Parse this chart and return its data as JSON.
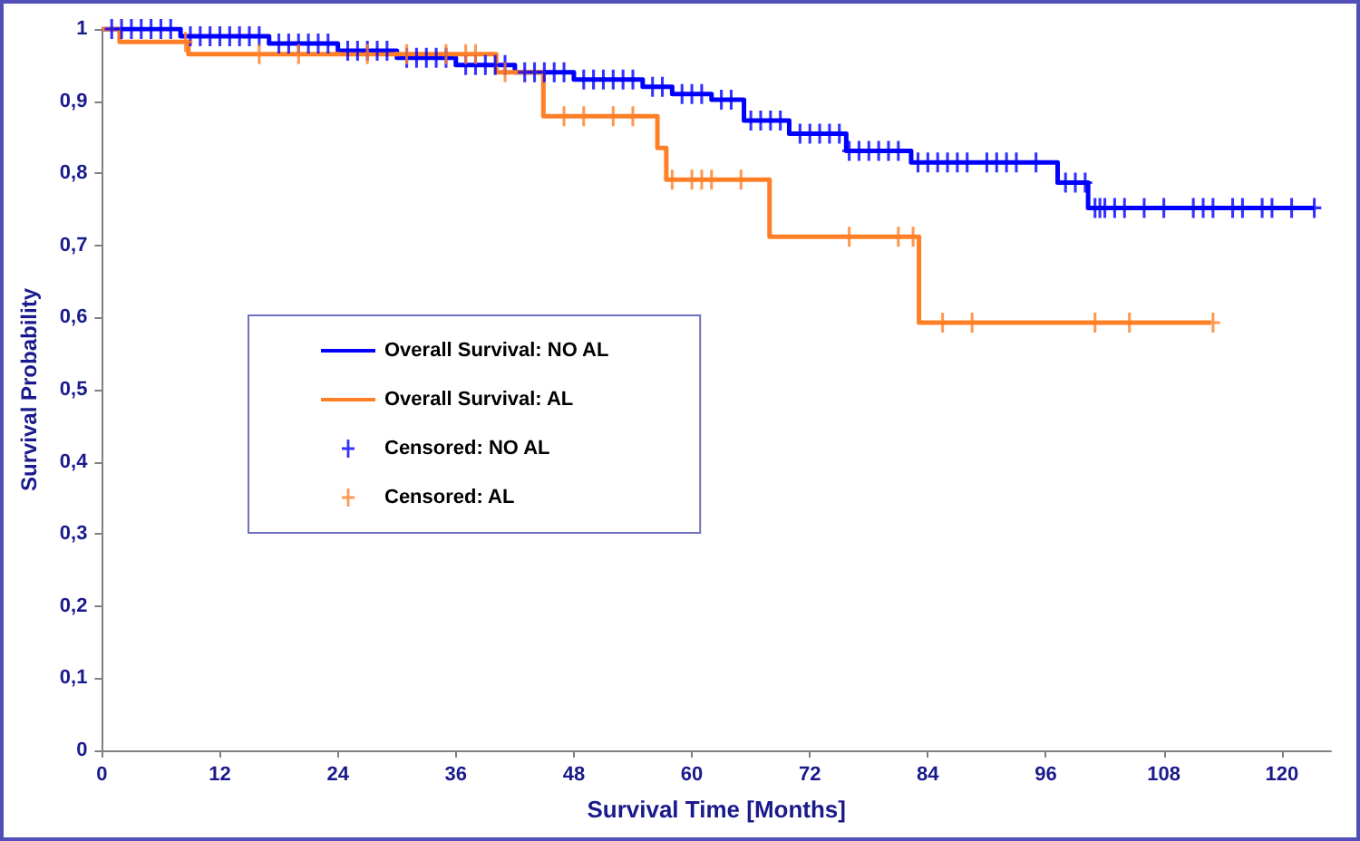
{
  "chart_data": {
    "type": "step",
    "xlabel": "Survival Time [Months]",
    "ylabel": "Survival Probability",
    "xlim": [
      0,
      125
    ],
    "xticks": [
      0,
      12,
      24,
      36,
      48,
      60,
      72,
      84,
      96,
      108,
      120
    ],
    "ylim": [
      0,
      1
    ],
    "yticks": [
      0,
      {
        "value": 0.1,
        "label": "0,1"
      },
      {
        "value": 0.2,
        "label": "0,2"
      },
      {
        "value": 0.3,
        "label": "0,3"
      },
      {
        "value": 0.4,
        "label": "0,4"
      },
      {
        "value": 0.5,
        "label": "0,5"
      },
      {
        "value": 0.6,
        "label": "0,6"
      },
      {
        "value": 0.7,
        "label": "0,7"
      },
      {
        "value": 0.8,
        "label": "0,8"
      },
      {
        "value": 0.9,
        "label": "0,9"
      },
      1
    ],
    "grid": false,
    "legend": "left",
    "series": [
      {
        "name": "Overall Survival: NO AL",
        "color": "#0000ff",
        "x": [
          0,
          8,
          17,
          24,
          30,
          36,
          42,
          48,
          55,
          58,
          62,
          65.3,
          69.9,
          75.7,
          82.3,
          97.2,
          100.3,
          123.3
        ],
        "values": [
          1,
          0.99,
          0.98,
          0.97,
          0.96,
          0.95,
          0.94,
          0.93,
          0.92,
          0.91,
          0.902,
          0.873,
          0.855,
          0.831,
          0.815,
          0.787,
          0.752,
          0.752
        ]
      },
      {
        "name": "Overall Survival: AL",
        "color": "#ff7f27",
        "x": [
          0,
          1.8,
          8.8,
          40.1,
          44.9,
          56.5,
          57.4,
          67.9,
          83.1,
          112.8
        ],
        "values": [
          1,
          0.982,
          0.965,
          0.94,
          0.879,
          0.835,
          0.791,
          0.712,
          0.593,
          0.593
        ]
      },
      {
        "name": "Censored: NO AL",
        "type": "scatter",
        "marker": "cross",
        "color": "#0000ff",
        "x": [
          1,
          2,
          3,
          4,
          5,
          6,
          7,
          9,
          10,
          11,
          12,
          13,
          14,
          15,
          16,
          18,
          19,
          20,
          21,
          22,
          23,
          25,
          26,
          27,
          28,
          29,
          31,
          32,
          33,
          34,
          35,
          37,
          38,
          39,
          40,
          41,
          43,
          44,
          45,
          46,
          47,
          49,
          50,
          51,
          52,
          53,
          54,
          56,
          57,
          59,
          60,
          61,
          63,
          64,
          66,
          67,
          68,
          69,
          71,
          72,
          73,
          74,
          75,
          76,
          77,
          78,
          79,
          80,
          81,
          83,
          84,
          85,
          86,
          87,
          88,
          90,
          91,
          92,
          93,
          95,
          98,
          99,
          100,
          101,
          101.5,
          102,
          103,
          104,
          106,
          108,
          111,
          112,
          113,
          115,
          116,
          118,
          119,
          121,
          123.3
        ],
        "values": [
          1,
          1,
          1,
          1,
          1,
          1,
          1,
          0.99,
          0.99,
          0.99,
          0.99,
          0.99,
          0.99,
          0.99,
          0.99,
          0.98,
          0.98,
          0.98,
          0.98,
          0.98,
          0.98,
          0.97,
          0.97,
          0.97,
          0.97,
          0.97,
          0.96,
          0.96,
          0.96,
          0.96,
          0.96,
          0.95,
          0.95,
          0.95,
          0.95,
          0.95,
          0.94,
          0.94,
          0.94,
          0.94,
          0.94,
          0.93,
          0.93,
          0.93,
          0.93,
          0.93,
          0.93,
          0.92,
          0.92,
          0.91,
          0.91,
          0.91,
          0.902,
          0.902,
          0.873,
          0.873,
          0.873,
          0.873,
          0.855,
          0.855,
          0.855,
          0.855,
          0.855,
          0.831,
          0.831,
          0.831,
          0.831,
          0.831,
          0.831,
          0.815,
          0.815,
          0.815,
          0.815,
          0.815,
          0.815,
          0.815,
          0.815,
          0.815,
          0.815,
          0.815,
          0.787,
          0.787,
          0.787,
          0.752,
          0.752,
          0.752,
          0.752,
          0.752,
          0.752,
          0.752,
          0.752,
          0.752,
          0.752,
          0.752,
          0.752,
          0.752,
          0.752,
          0.752,
          0.752
        ]
      },
      {
        "name": "Censored: AL",
        "type": "scatter",
        "marker": "cross",
        "color": "#ff7f27",
        "x": [
          8.5,
          16,
          20,
          27,
          31,
          35,
          37,
          38,
          41,
          47,
          49,
          52,
          54,
          58,
          60,
          61,
          62,
          65,
          76,
          81,
          82.5,
          85.5,
          88.5,
          101,
          104.5,
          113
        ],
        "values": [
          0.982,
          0.965,
          0.965,
          0.965,
          0.965,
          0.965,
          0.965,
          0.965,
          0.94,
          0.879,
          0.879,
          0.879,
          0.879,
          0.791,
          0.791,
          0.791,
          0.791,
          0.791,
          0.712,
          0.712,
          0.712,
          0.593,
          0.593,
          0.593,
          0.593,
          0.593
        ]
      }
    ]
  }
}
